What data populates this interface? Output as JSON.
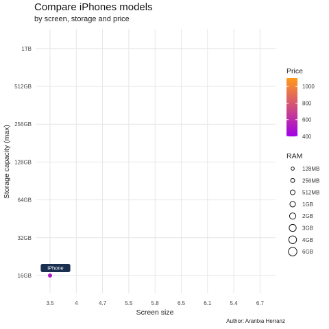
{
  "chart_data": {
    "type": "scatter",
    "title": "Compare iPhones models",
    "subtitle": "by screen, storage and price",
    "caption": "Author: Arantxa Herranz",
    "xlabel": "Screen size",
    "ylabel": "Storage capacity (max)",
    "x_categories": [
      "3.5",
      "4",
      "4.7",
      "5.5",
      "5.8",
      "6.5",
      "6.1",
      "5.4",
      "6.7"
    ],
    "y_categories": [
      "16GB",
      "32GB",
      "64GB",
      "128GB",
      "256GB",
      "512GB",
      "1TB"
    ],
    "grid": true,
    "points": [
      {
        "label": "iPhone",
        "x": "3.5",
        "y": "16GB",
        "price": 499,
        "ram": "128MB"
      }
    ],
    "color_legend": {
      "title": "Price",
      "low_color": "#a000e6",
      "high_color": "#ff9a1a",
      "min": 400,
      "max": 1100,
      "breaks": [
        400,
        600,
        800,
        1000
      ]
    },
    "size_legend": {
      "title": "RAM",
      "levels": [
        "128MB",
        "256MB",
        "512MB",
        "1GB",
        "2GB",
        "3GB",
        "4GB",
        "6GB"
      ]
    }
  }
}
